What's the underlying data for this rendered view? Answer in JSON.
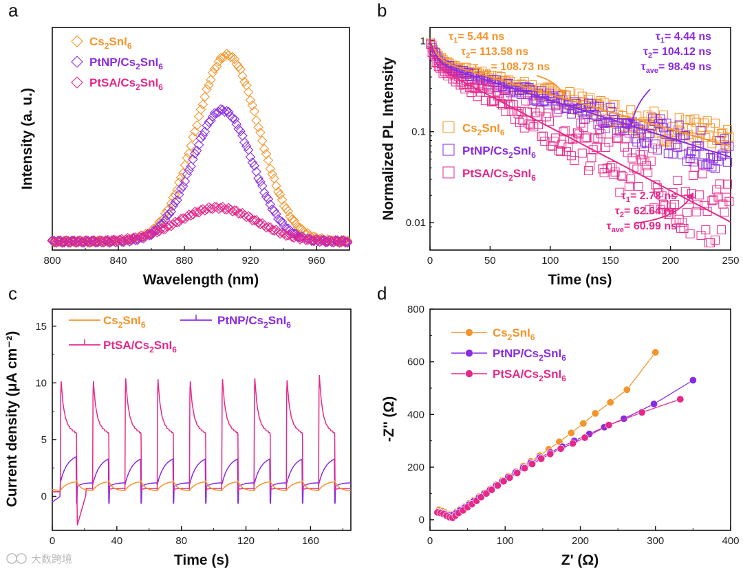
{
  "colors": {
    "Cs2SnI6": "#f5942a",
    "PtNP/Cs2SnI6": "#8a2be2",
    "PtSA/Cs2SnI6": "#e5288a"
  },
  "watermark": "大数跨境",
  "chart_data": [
    {
      "panel_label": "a",
      "type": "scatter",
      "marker": "diamond",
      "xlabel": "Wavelength (nm)",
      "ylabel": "Intensity (a. u.)",
      "xlim": [
        800,
        980
      ],
      "xticks": [
        "800",
        "840",
        "880",
        "920",
        "960"
      ],
      "legend_position": "top-left",
      "series": [
        {
          "name": "Cs₂SnI₆",
          "base": 0.04,
          "peak_x": 906,
          "peak_height": 0.88,
          "fwhm": 45
        },
        {
          "name": "PtNP/Cs₂SnI₆",
          "base": 0.04,
          "peak_x": 903,
          "peak_height": 0.62,
          "fwhm": 43
        },
        {
          "name": "PtSA/Cs₂SnI₆",
          "base": 0.04,
          "peak_x": 900,
          "peak_height": 0.16,
          "fwhm": 55
        }
      ]
    },
    {
      "panel_label": "b",
      "type": "scatter",
      "marker": "square",
      "yscale": "log",
      "xlabel": "Time (ns)",
      "ylabel": "Normalized PL Intensity",
      "xlim": [
        0,
        250
      ],
      "ylim": [
        0.005,
        1.4
      ],
      "xticks": [
        "0",
        "50",
        "100",
        "150",
        "200",
        "250"
      ],
      "yticks": [
        {
          "value": 1,
          "label": "1"
        },
        {
          "value": 0.1,
          "label": "0.1"
        },
        {
          "value": 0.01,
          "label": "0.01"
        }
      ],
      "legend_position": "center-left",
      "series": [
        {
          "name": "Cs₂SnI₆",
          "fit": {
            "a1": 0.38,
            "tau1": 5.44,
            "a2": 0.62,
            "tau2": 113.58
          }
        },
        {
          "name": "PtNP/Cs₂SnI₆",
          "fit": {
            "a1": 0.42,
            "tau1": 4.44,
            "a2": 0.58,
            "tau2": 104.12
          }
        },
        {
          "name": "PtSA/Cs₂SnI₆",
          "fit": {
            "a1": 0.45,
            "tau1": 2.78,
            "a2": 0.55,
            "tau2": 62.64
          }
        }
      ],
      "annotations": [
        {
          "series": "Cs₂SnI₆",
          "lines": [
            [
              "τ",
              "1",
              "= 5.44 ns"
            ],
            [
              "τ",
              "2",
              "= 113.58 ns"
            ],
            [
              "τ",
              "ave",
              "= 108.73 ns"
            ]
          ]
        },
        {
          "series": "PtNP/Cs₂SnI₆",
          "lines": [
            [
              "τ",
              "1",
              "= 4.44 ns"
            ],
            [
              "τ",
              "2",
              "= 104.12 ns"
            ],
            [
              "τ",
              "ave",
              "= 98.49 ns"
            ]
          ]
        },
        {
          "series": "PtSA/Cs₂SnI₆",
          "lines": [
            [
              "τ",
              "1",
              "= 2.78 ns"
            ],
            [
              "τ",
              "2",
              "= 62.64 ns"
            ],
            [
              "τ",
              "ave",
              "= 60.99 ns"
            ]
          ]
        }
      ]
    },
    {
      "panel_label": "c",
      "type": "line",
      "xlabel": "Time (s)",
      "ylabel": "Current density (μA cm⁻²)",
      "xlim": [
        0,
        185
      ],
      "ylim": [
        -3,
        16.5
      ],
      "xticks": [
        "0",
        "40",
        "80",
        "120",
        "160"
      ],
      "yticks": [
        "0",
        "5",
        "10",
        "15"
      ],
      "legend_position": "top",
      "light_on_times_s": [
        5,
        25,
        45,
        65,
        85,
        105,
        125,
        145,
        165
      ],
      "light_off_times_s": [
        15,
        35,
        55,
        75,
        95,
        115,
        135,
        155,
        175
      ],
      "series": [
        {
          "name": "Cs₂SnI₆",
          "on_peak": 1.35,
          "baseline": 0.5
        },
        {
          "name": "PtNP/Cs₂SnI₆",
          "on_peak": 3.3,
          "baseline": 0.8
        },
        {
          "name": "PtSA/Cs₂SnI₆",
          "spike_peaks": [
            10.6,
            10.6,
            10.9,
            10.8,
            10.6,
            10.8,
            10.9,
            10.7,
            11.2
          ],
          "plateau": 6.3,
          "baseline": 0.7
        }
      ]
    },
    {
      "panel_label": "d",
      "type": "line",
      "marker": "circle",
      "xlabel": "Z' (Ω)",
      "ylabel": "-Z'' (Ω)",
      "xlim": [
        0,
        400
      ],
      "ylim": [
        -40,
        800
      ],
      "xticks": [
        "0",
        "100",
        "200",
        "300",
        "400"
      ],
      "yticks": [
        "0",
        "200",
        "400",
        "600",
        "800"
      ],
      "legend_position": "top-left",
      "series": [
        {
          "name": "Cs₂SnI₆",
          "x": [
            12,
            16,
            20,
            25,
            30,
            35,
            40,
            46,
            52,
            58,
            65,
            72,
            80,
            88,
            96,
            104,
            114,
            124,
            134,
            146,
            158,
            172,
            188,
            204,
            220,
            240,
            262,
            300
          ],
          "y": [
            38,
            34,
            28,
            22,
            22,
            30,
            40,
            50,
            62,
            74,
            88,
            102,
            118,
            134,
            150,
            166,
            184,
            204,
            222,
            244,
            268,
            296,
            330,
            366,
            404,
            446,
            494,
            636
          ]
        },
        {
          "name": "PtNP/Cs₂SnI₆",
          "x": [
            12,
            16,
            20,
            25,
            30,
            35,
            40,
            46,
            52,
            58,
            65,
            72,
            80,
            88,
            96,
            104,
            114,
            124,
            134,
            146,
            160,
            176,
            192,
            212,
            232,
            258,
            298,
            350
          ],
          "y": [
            30,
            27,
            22,
            18,
            18,
            26,
            36,
            46,
            58,
            70,
            84,
            98,
            114,
            130,
            146,
            162,
            180,
            198,
            216,
            236,
            256,
            278,
            300,
            326,
            352,
            384,
            440,
            530
          ]
        },
        {
          "name": "PtSA/Cs₂SnI₆",
          "x": [
            10,
            14,
            18,
            22,
            26,
            30,
            34,
            38,
            44,
            50,
            56,
            62,
            68,
            75,
            82,
            90,
            98,
            106,
            116,
            126,
            136,
            148,
            160,
            174,
            190,
            206,
            238,
            282,
            333
          ],
          "y": [
            28,
            26,
            22,
            16,
            10,
            8,
            16,
            26,
            36,
            48,
            60,
            72,
            86,
            100,
            114,
            130,
            146,
            160,
            178,
            196,
            212,
            232,
            250,
            270,
            290,
            312,
            360,
            408,
            458
          ]
        }
      ]
    }
  ]
}
